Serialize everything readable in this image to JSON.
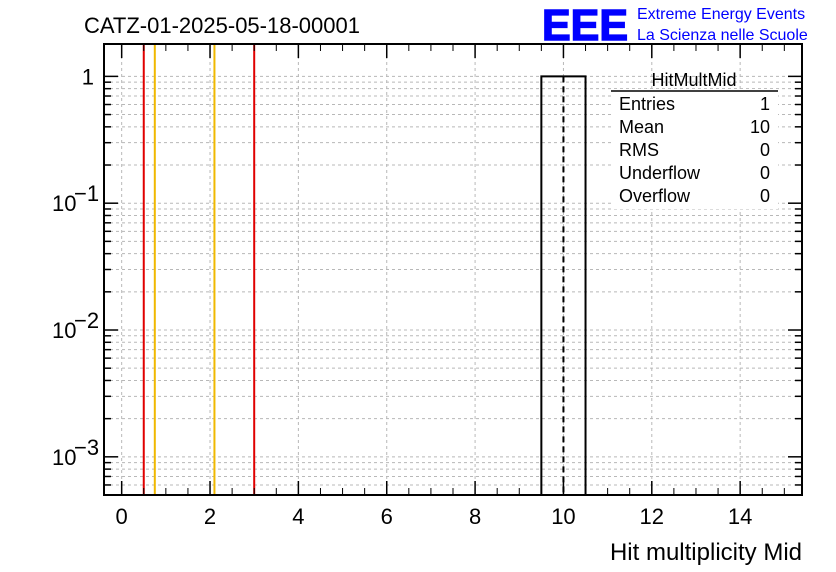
{
  "header": {
    "run_title": "CATZ-01-2025-05-18-00001",
    "logo_mark": "EEE",
    "logo_line1": "Extreme Energy Events",
    "logo_line2": "La Scienza nelle Scuole"
  },
  "colors": {
    "logo": "#0000ff",
    "red_marker": "#e00000",
    "yellow_marker": "#f0b800",
    "grid": "#b8b8b8"
  },
  "stats": {
    "name": "HitMultMid",
    "rows": [
      {
        "label": "Entries",
        "value": "1"
      },
      {
        "label": "Mean",
        "value": "10"
      },
      {
        "label": "RMS",
        "value": "0"
      },
      {
        "label": "Underflow",
        "value": "0"
      },
      {
        "label": "Overflow",
        "value": "0"
      }
    ]
  },
  "chart_data": {
    "type": "bar",
    "histogram_name": "HitMultMid",
    "xlabel": "Hit multiplicity Mid",
    "ylabel": "",
    "xlim": [
      -0.4,
      15.4
    ],
    "ylim": [
      0.0005,
      1.8
    ],
    "y_scale": "log",
    "grid": true,
    "x_ticks": [
      0,
      2,
      4,
      6,
      8,
      10,
      12,
      14
    ],
    "y_ticks": [
      {
        "value": 1,
        "base": "1",
        "exp": ""
      },
      {
        "value": 0.1,
        "base": "10",
        "exp": "−1"
      },
      {
        "value": 0.01,
        "base": "10",
        "exp": "−2"
      },
      {
        "value": 0.001,
        "base": "10",
        "exp": "−3"
      }
    ],
    "bins": [
      {
        "x_low": 9.5,
        "x_high": 10.5,
        "value": 1
      }
    ],
    "mean_line": 10,
    "vertical_markers": [
      {
        "x": 0.5,
        "color": "red"
      },
      {
        "x": 0.75,
        "color": "yellow"
      },
      {
        "x": 2.1,
        "color": "yellow"
      },
      {
        "x": 3.0,
        "color": "red"
      }
    ]
  }
}
